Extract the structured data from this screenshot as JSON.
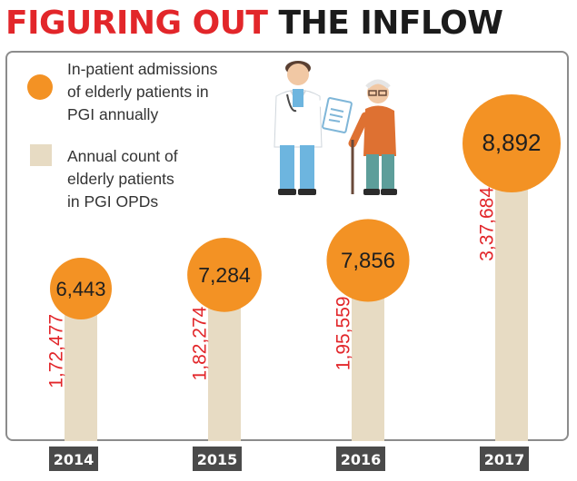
{
  "title": {
    "part1": "FIGURING OUT",
    "part2": "THE INFLOW"
  },
  "legend": {
    "admissions_lines": [
      "In-patient admissions",
      "of elderly patients in",
      "PGI annually"
    ],
    "opd_lines": [
      "Annual count of",
      "elderly patients",
      "in PGI OPDs"
    ]
  },
  "colors": {
    "title_red": "#e2262a",
    "title_dark": "#1b1b1b",
    "circle_orange": "#f39224",
    "bar_beige": "#e7dbc3",
    "value_red": "#e2262a",
    "year_box": "#4a4a4a",
    "year_text": "#ffffff",
    "frame": "#8c8c8c"
  },
  "chart_data": {
    "type": "bar",
    "title": "FIGURING OUT THE INFLOW",
    "categories": [
      "2014",
      "2015",
      "2016",
      "2017"
    ],
    "series": [
      {
        "name": "Annual count of elderly patients in PGI OPDs",
        "values": [
          172477,
          182274,
          195559,
          337684
        ],
        "labels": [
          "1,72,477",
          "1,82,274",
          "1,95,559",
          "3,37,684"
        ],
        "mark": "bar"
      },
      {
        "name": "In-patient admissions of elderly patients in PGI annually",
        "values": [
          6443,
          7284,
          7856,
          8892
        ],
        "labels": [
          "6,443",
          "7,284",
          "7,856",
          "8,892"
        ],
        "mark": "circle"
      }
    ],
    "xlabel": "",
    "ylabel": "",
    "legend_position": "top-left",
    "grid": false
  }
}
